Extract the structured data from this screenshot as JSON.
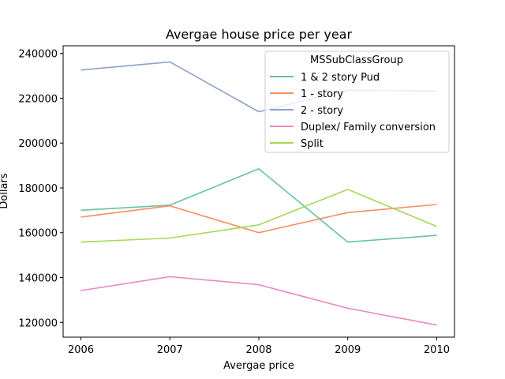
{
  "chart_data": {
    "type": "line",
    "title": "Avergae house price per year",
    "xlabel": "Avergae price",
    "ylabel": "Dollars",
    "x": [
      2006,
      2007,
      2008,
      2009,
      2010
    ],
    "xticks": [
      "2006",
      "2007",
      "2008",
      "2009",
      "2010"
    ],
    "yticks": [
      120000,
      140000,
      160000,
      180000,
      200000,
      220000,
      240000
    ],
    "ytick_labels": [
      "120000",
      "140000",
      "160000",
      "180000",
      "200000",
      "220000",
      "240000"
    ],
    "xlim": [
      2005.8,
      2010.2
    ],
    "ylim": [
      113400,
      243400
    ],
    "grid": false,
    "legend": {
      "title": "MSSubClassGroup",
      "placement": "top-right"
    },
    "series": [
      {
        "name": "1 & 2 story Pud",
        "color": "#66c2a5",
        "values": [
          170000,
          172300,
          188500,
          155800,
          158800
        ]
      },
      {
        "name": "1 - story",
        "color": "#fc8d62",
        "values": [
          167000,
          172000,
          160000,
          169000,
          172600
        ]
      },
      {
        "name": "2 - story",
        "color": "#8da0cb",
        "values": [
          232600,
          236200,
          214000,
          223600,
          223200
        ]
      },
      {
        "name": "Duplex/ Family conversion",
        "color": "#e78ac3",
        "values": [
          134200,
          140400,
          136800,
          126300,
          118800
        ]
      },
      {
        "name": "Split",
        "color": "#a6d854",
        "values": [
          155800,
          157600,
          163500,
          179300,
          162800
        ]
      }
    ]
  }
}
